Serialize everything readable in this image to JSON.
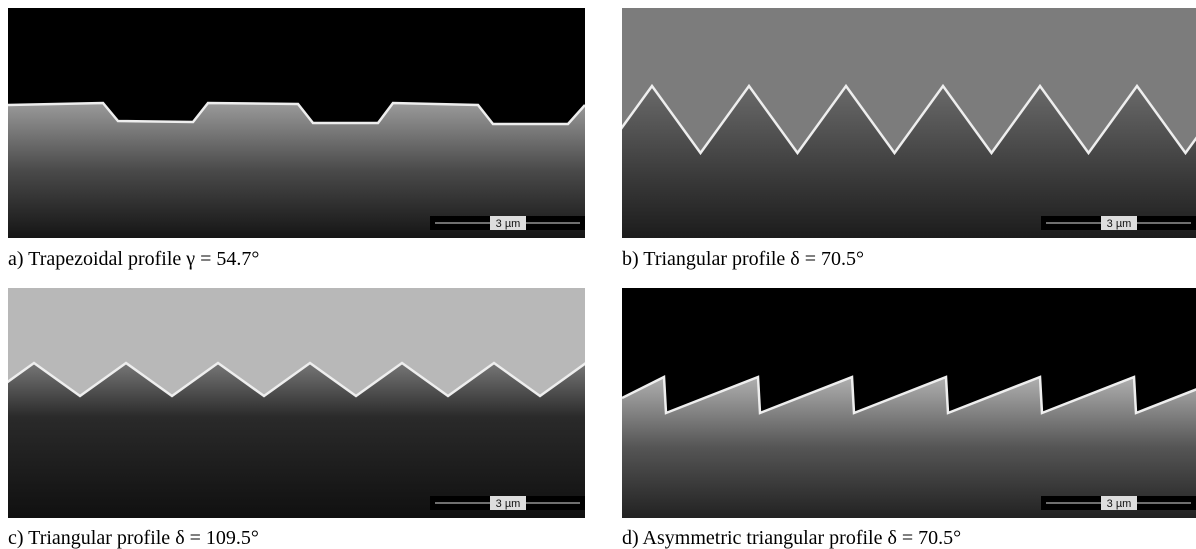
{
  "panels": [
    {
      "caption": "a) Trapezoidal profile γ = 54.7°",
      "scale_bar": "3 µm"
    },
    {
      "caption": "b) Triangular profile δ = 70.5°",
      "scale_bar": "3 µm"
    },
    {
      "caption": "c) Triangular profile δ = 109.5°",
      "scale_bar": "3 µm"
    },
    {
      "caption": "d) Asymmetric triangular profile δ = 70.5°",
      "scale_bar": "3 µm"
    }
  ]
}
